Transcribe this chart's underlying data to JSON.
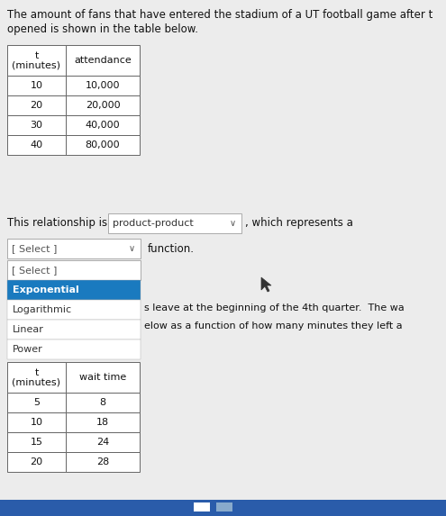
{
  "bg_color": "#ececec",
  "header_text_line1": "The amount of fans that have entered the stadium of a UT football game after t",
  "header_text_line2": "opened is shown in the table below.",
  "table1_headers": [
    "t\n(minutes)",
    "attendance"
  ],
  "table1_rows": [
    [
      "10",
      "10,000"
    ],
    [
      "20",
      "20,000"
    ],
    [
      "30",
      "40,000"
    ],
    [
      "40",
      "80,000"
    ]
  ],
  "relationship_label": "This relationship is",
  "dropdown1_text": "product-product",
  "dropdown1_chevron": "∨",
  "dropdown1_suffix": ", which represents a",
  "select_label": "[ Select ]",
  "select_chevron": "∨",
  "function_label": "function.",
  "select2_label": "[ Select ]",
  "dropdown_items": [
    "Exponential",
    "Logarithmic",
    "Linear",
    "Power"
  ],
  "highlighted_item": "Exponential",
  "highlight_color": "#1a7abf",
  "highlight_text_color": "#ffffff",
  "side_text1": "s leave at the beginning of the 4th quarter.  The wa",
  "side_text2": "elow as a function of how many minutes they left a",
  "table2_headers": [
    "t\n(minutes)",
    "wait time"
  ],
  "table2_rows": [
    [
      "5",
      "8"
    ],
    [
      "10",
      "18"
    ],
    [
      "15",
      "24"
    ],
    [
      "20",
      "28"
    ]
  ],
  "bottom_bar_color": "#2a5caa",
  "font_size_header": 8.5,
  "font_size_body": 8.5,
  "font_size_small": 8.0,
  "table_border_color": "#666666",
  "dropdown_border_color": "#aaaaaa",
  "white": "#ffffff"
}
